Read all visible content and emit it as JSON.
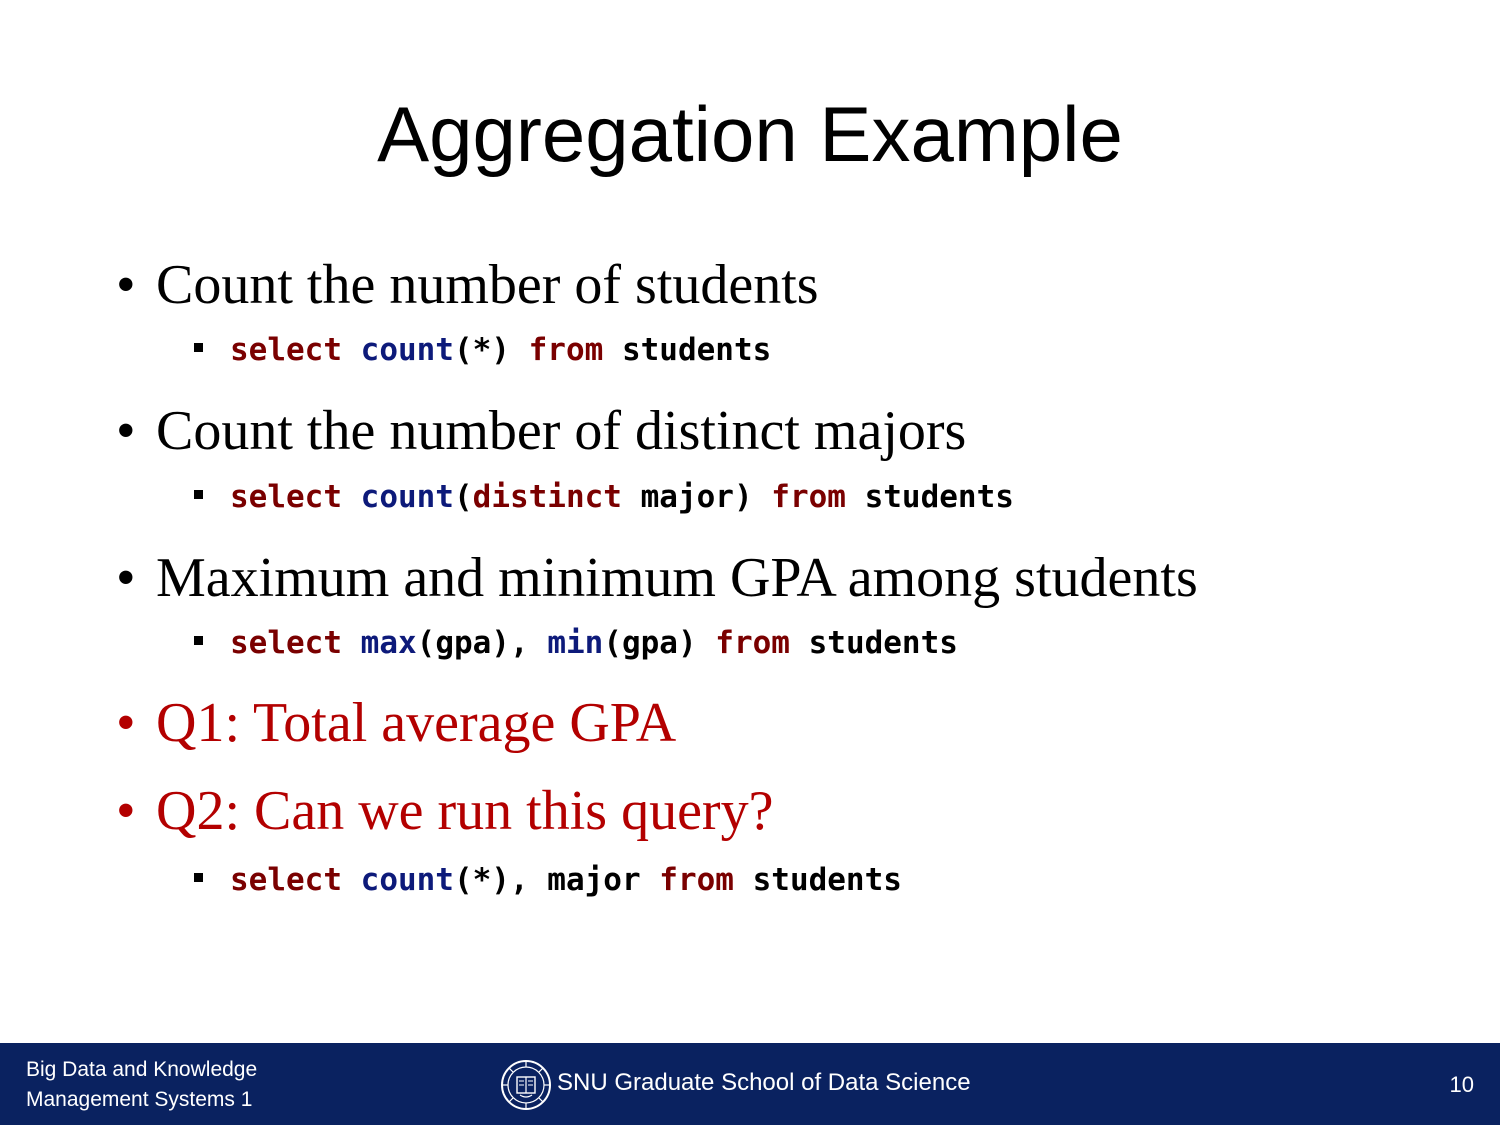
{
  "slide": {
    "title": "Aggregation Example",
    "bullets": [
      {
        "text": "Count the number of students",
        "color": "#000000",
        "code": [
          {
            "t": "select",
            "k": "kw"
          },
          {
            "t": " ",
            "k": "tx"
          },
          {
            "t": "count",
            "k": "fn"
          },
          {
            "t": "(*) ",
            "k": "tx"
          },
          {
            "t": "from",
            "k": "kw"
          },
          {
            "t": " students",
            "k": "tx"
          }
        ]
      },
      {
        "text": "Count the number of distinct majors",
        "color": "#000000",
        "code": [
          {
            "t": "select",
            "k": "kw"
          },
          {
            "t": " ",
            "k": "tx"
          },
          {
            "t": "count",
            "k": "fn"
          },
          {
            "t": "(",
            "k": "tx"
          },
          {
            "t": "distinct",
            "k": "kw"
          },
          {
            "t": " major) ",
            "k": "tx"
          },
          {
            "t": "from",
            "k": "kw"
          },
          {
            "t": " students",
            "k": "tx"
          }
        ]
      },
      {
        "text": "Maximum and minimum GPA among students",
        "color": "#000000",
        "code": [
          {
            "t": "select",
            "k": "kw"
          },
          {
            "t": " ",
            "k": "tx"
          },
          {
            "t": "max",
            "k": "fn"
          },
          {
            "t": "(gpa), ",
            "k": "tx"
          },
          {
            "t": "min",
            "k": "fn"
          },
          {
            "t": "(gpa) ",
            "k": "tx"
          },
          {
            "t": "from",
            "k": "kw"
          },
          {
            "t": " students",
            "k": "tx"
          }
        ]
      },
      {
        "text": "Q1: Total average GPA",
        "color": "#b30000",
        "code": []
      },
      {
        "text": "Q2: Can we run this query?",
        "color": "#b30000",
        "code": [
          {
            "t": "select",
            "k": "kw"
          },
          {
            "t": " ",
            "k": "tx"
          },
          {
            "t": "count",
            "k": "fn"
          },
          {
            "t": "(*), major ",
            "k": "tx"
          },
          {
            "t": "from",
            "k": "kw"
          },
          {
            "t": " students",
            "k": "tx"
          }
        ]
      }
    ]
  },
  "footer": {
    "course_line1": "Big Data and Knowledge",
    "course_line2": "Management Systems 1",
    "school": "SNU Graduate School of Data Science",
    "page_number": "10",
    "logo_icon": "snu-emblem-icon",
    "background_color": "#0a2260"
  },
  "colors": {
    "keyword": "#7a0000",
    "function": "#0d1a7a",
    "highlight_bullet": "#b30000"
  }
}
